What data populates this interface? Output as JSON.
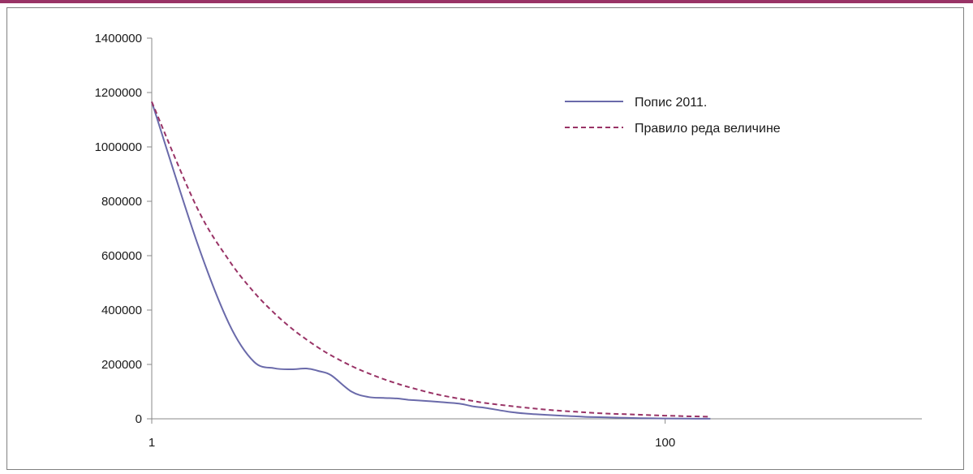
{
  "chart_data": {
    "type": "line",
    "title": "",
    "xlabel": "",
    "ylabel": "",
    "x_scale": "log",
    "xlim": [
      1,
      1000
    ],
    "ylim": [
      0,
      1400000
    ],
    "x_ticks": [
      1,
      100
    ],
    "x_tick_labels": [
      "1",
      "100"
    ],
    "y_ticks": [
      0,
      200000,
      400000,
      600000,
      800000,
      1000000,
      1200000,
      1400000
    ],
    "y_tick_labels": [
      "0",
      "200000",
      "400000",
      "600000",
      "800000",
      "1000000",
      "1200000",
      "1400000"
    ],
    "grid": false,
    "legend_position": "top-right",
    "series": [
      {
        "name": "Попис 2011.",
        "color": "#6a6aaa",
        "style": "solid",
        "x": [
          1,
          1.5,
          2,
          2.5,
          3,
          3.5,
          4,
          4.5,
          5,
          6,
          7,
          8,
          9,
          10,
          12,
          14,
          16,
          18,
          20,
          25,
          30,
          35,
          40,
          45,
          50,
          60,
          70,
          80,
          90,
          100,
          120,
          150
        ],
        "y": [
          1166000,
          650000,
          350000,
          210000,
          186000,
          182000,
          185000,
          175000,
          160000,
          100000,
          80000,
          77000,
          75000,
          70000,
          65000,
          60000,
          55000,
          45000,
          40000,
          25000,
          18000,
          14000,
          11000,
          9000,
          7000,
          5000,
          3500,
          2500,
          1800,
          1200,
          700,
          300
        ]
      },
      {
        "name": "Правило реда величине",
        "color": "#993366",
        "style": "dashed",
        "x": [
          1,
          1.5,
          2,
          2.5,
          3,
          3.5,
          4,
          4.5,
          5,
          6,
          7,
          8,
          9,
          10,
          12,
          14,
          16,
          18,
          20,
          25,
          30,
          35,
          40,
          45,
          50,
          60,
          70,
          80,
          90,
          100,
          120,
          150
        ],
        "y": [
          1166000,
          777000,
          583000,
          466000,
          389000,
          333000,
          292000,
          259000,
          233000,
          194000,
          167000,
          146000,
          130000,
          117000,
          97000,
          83000,
          73000,
          65000,
          58000,
          47000,
          39000,
          33000,
          29000,
          26000,
          23000,
          19000,
          17000,
          15000,
          13000,
          11700,
          9700,
          7800
        ]
      }
    ]
  }
}
